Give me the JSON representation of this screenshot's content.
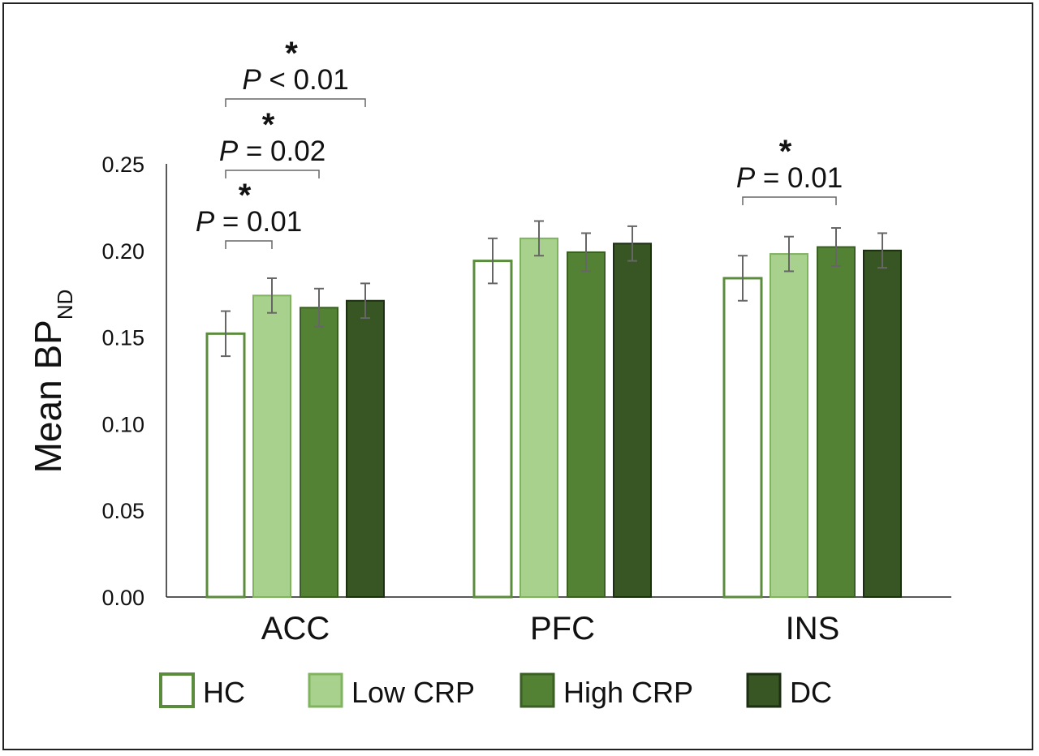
{
  "chart_data": {
    "type": "bar",
    "title": "",
    "xlabel": "",
    "ylabel": "Mean BP",
    "ylabel_subscript": "ND",
    "ylim": [
      0,
      0.25
    ],
    "yticks": [
      "0.00",
      "0.05",
      "0.10",
      "0.15",
      "0.20",
      "0.25"
    ],
    "categories": [
      "ACC",
      "PFC",
      "INS"
    ],
    "series": [
      {
        "name": "HC",
        "values": [
          0.152,
          0.194,
          0.184
        ],
        "errors": [
          0.013,
          0.013,
          0.013
        ],
        "fill": "#ffffff",
        "stroke": "#5b8c3e"
      },
      {
        "name": "Low CRP",
        "values": [
          0.174,
          0.207,
          0.198
        ],
        "errors": [
          0.01,
          0.01,
          0.01
        ],
        "fill": "#a9d18e",
        "stroke": "#7fb35e"
      },
      {
        "name": "High CRP",
        "values": [
          0.167,
          0.199,
          0.202
        ],
        "errors": [
          0.011,
          0.011,
          0.011
        ],
        "fill": "#548235",
        "stroke": "#3a5e24"
      },
      {
        "name": "DC",
        "values": [
          0.171,
          0.204,
          0.2
        ],
        "errors": [
          0.01,
          0.01,
          0.01
        ],
        "fill": "#375623",
        "stroke": "#1d2f12"
      }
    ],
    "annotations": [
      {
        "category": 0,
        "from": 0,
        "to": 1,
        "p_prefix": "P",
        "p_rest": " = 0.01",
        "star": "*"
      },
      {
        "category": 0,
        "from": 0,
        "to": 2,
        "p_prefix": "P",
        "p_rest": " = 0.02",
        "star": "*"
      },
      {
        "category": 0,
        "from": 0,
        "to": 3,
        "p_prefix": "P",
        "p_rest": " < 0.01",
        "star": "*"
      },
      {
        "category": 2,
        "from": 0,
        "to": 2,
        "p_prefix": "P",
        "p_rest": " = 0.01",
        "star": "*"
      }
    ],
    "grid": false,
    "legend_position": "bottom"
  }
}
